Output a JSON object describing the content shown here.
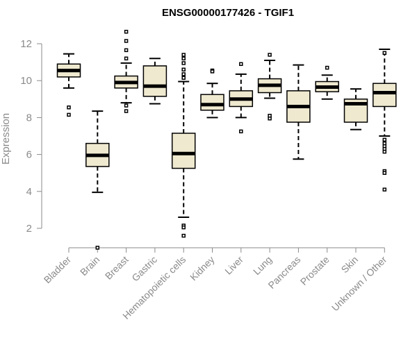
{
  "chart_data": {
    "type": "boxplot",
    "title": "ENSG00000177426 - TGIF1",
    "xlabel": "",
    "ylabel": "Expression",
    "ylim": [
      1.5,
      12.7
    ],
    "yticks": [
      2,
      4,
      6,
      8,
      10,
      12
    ],
    "box_fill": "#efe9d0",
    "categories": [
      "Bladder",
      "Brain",
      "Breast",
      "Gastric",
      "Hematopoietic cells",
      "Kidney",
      "Liver",
      "Lung",
      "Pancreas",
      "Prostate",
      "Skin",
      "Unknown / Other"
    ],
    "boxes": [
      {
        "name": "Bladder",
        "whisker_low": 9.6,
        "q1": 10.2,
        "median": 10.55,
        "q3": 10.9,
        "whisker_high": 11.45,
        "outliers": [
          8.55,
          8.15
        ]
      },
      {
        "name": "Brain",
        "whisker_low": 3.95,
        "q1": 5.35,
        "median": 5.95,
        "q3": 6.6,
        "whisker_high": 8.35,
        "outliers": [
          0.95
        ]
      },
      {
        "name": "Breast",
        "whisker_low": 8.8,
        "q1": 9.6,
        "median": 9.9,
        "q3": 10.25,
        "whisker_high": 10.95,
        "outliers": [
          12.65,
          12.15,
          11.65,
          11.2,
          8.65,
          8.35
        ]
      },
      {
        "name": "Gastric",
        "whisker_low": 8.75,
        "q1": 9.15,
        "median": 9.7,
        "q3": 10.8,
        "whisker_high": 11.2,
        "outliers": []
      },
      {
        "name": "Hematopoietic cells",
        "whisker_low": 2.6,
        "q1": 5.25,
        "median": 6.05,
        "q3": 7.15,
        "whisker_high": 9.95,
        "outliers": [
          11.4,
          11.2,
          10.95,
          10.6,
          10.35,
          10.15,
          2.15,
          2.05,
          1.6
        ]
      },
      {
        "name": "Kidney",
        "whisker_low": 8.0,
        "q1": 8.4,
        "median": 8.7,
        "q3": 9.25,
        "whisker_high": 9.85,
        "outliers": [
          10.55,
          10.5
        ]
      },
      {
        "name": "Liver",
        "whisker_low": 8.0,
        "q1": 8.6,
        "median": 9.0,
        "q3": 9.45,
        "whisker_high": 10.35,
        "outliers": [
          10.9,
          7.25
        ]
      },
      {
        "name": "Lung",
        "whisker_low": 9.05,
        "q1": 9.35,
        "median": 9.75,
        "q3": 10.1,
        "whisker_high": 11.1,
        "outliers": [
          11.4,
          8.1,
          7.95
        ]
      },
      {
        "name": "Pancreas",
        "whisker_low": 5.75,
        "q1": 7.75,
        "median": 8.6,
        "q3": 9.45,
        "whisker_high": 10.85,
        "outliers": []
      },
      {
        "name": "Prostate",
        "whisker_low": 9.0,
        "q1": 9.4,
        "median": 9.65,
        "q3": 9.95,
        "whisker_high": 10.3,
        "outliers": [
          10.7
        ]
      },
      {
        "name": "Skin",
        "whisker_low": 7.35,
        "q1": 7.75,
        "median": 8.75,
        "q3": 9.0,
        "whisker_high": 9.55,
        "outliers": []
      },
      {
        "name": "Unknown / Other",
        "whisker_low": 7.0,
        "q1": 8.6,
        "median": 9.35,
        "q3": 9.85,
        "whisker_high": 11.7,
        "outliers": [
          11.5,
          6.8,
          6.6,
          6.45,
          6.3,
          6.15,
          5.1,
          5.0,
          4.1
        ]
      }
    ]
  }
}
